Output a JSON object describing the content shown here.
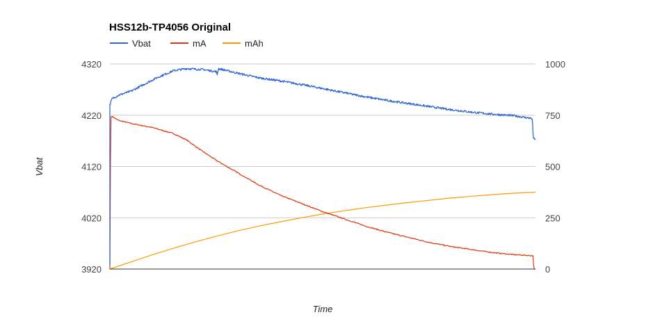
{
  "colors": {
    "vbat": "#3366cc",
    "ma": "#dc3912",
    "mah": "#ff9900",
    "grid": "#cccccc",
    "baseline": "#333333"
  },
  "chart_data": {
    "type": "line",
    "title": "HSS12b-TP4056 Original",
    "xlabel": "Time",
    "ylabel": "Vbat",
    "legend_position": "top-left",
    "grid": true,
    "y_left": {
      "min": 3920,
      "max": 4320,
      "ticks": [
        "3920",
        "4020",
        "4120",
        "4220",
        "4320"
      ]
    },
    "y_right": {
      "min": 0,
      "max": 1000,
      "ticks": [
        "0",
        "250",
        "500",
        "750",
        "1000"
      ]
    },
    "x_range": [
      0,
      100
    ],
    "legend": [
      "Vbat",
      "mA",
      "mAh"
    ],
    "series": [
      {
        "name": "Vbat",
        "axis": "left",
        "x": [
          0,
          0.2,
          0.5,
          2,
          5,
          8,
          11,
          15,
          18,
          20,
          22,
          25,
          25.2,
          25.5,
          27,
          30,
          35,
          40,
          45,
          50,
          55,
          60,
          65,
          70,
          75,
          80,
          85,
          90,
          95,
          99,
          99.3,
          99.5,
          100
        ],
        "y": [
          4240,
          4245,
          4252,
          4259,
          4267,
          4280,
          4293,
          4307,
          4311,
          4310,
          4309,
          4305,
          4298,
          4311,
          4308,
          4302,
          4293,
          4287,
          4280,
          4272,
          4264,
          4256,
          4249,
          4243,
          4237,
          4231,
          4226,
          4222,
          4219,
          4214,
          4210,
          4175,
          4172
        ]
      },
      {
        "name": "mA",
        "axis": "right",
        "x": [
          0,
          0.2,
          0.5,
          2,
          5,
          10,
          15,
          18,
          21,
          25,
          30,
          35,
          40,
          45,
          50,
          55,
          60,
          65,
          70,
          75,
          80,
          85,
          90,
          95,
          99.5,
          99.6,
          100
        ],
        "y": [
          0,
          740,
          745,
          725,
          710,
          690,
          660,
          630,
          585,
          530,
          470,
          410,
          360,
          320,
          280,
          245,
          210,
          180,
          155,
          130,
          110,
          95,
          80,
          70,
          65,
          0,
          0
        ],
        "noise": 5
      },
      {
        "name": "mAh",
        "axis": "right",
        "x": [
          0,
          5,
          10,
          15,
          20,
          25,
          30,
          35,
          40,
          45,
          50,
          55,
          60,
          65,
          70,
          75,
          80,
          85,
          90,
          95,
          100
        ],
        "y": [
          0,
          35,
          70,
          102,
          132,
          160,
          186,
          209,
          230,
          250,
          268,
          284,
          299,
          312,
          324,
          335,
          346,
          355,
          363,
          370,
          375
        ]
      }
    ]
  }
}
